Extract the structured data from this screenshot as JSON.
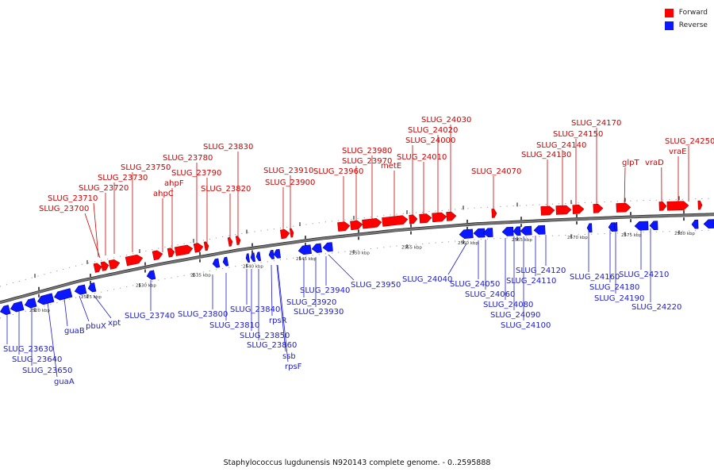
{
  "colors": {
    "forward": "#ff0000",
    "reverse": "#0a17ff",
    "forward_label": "#cc0000",
    "reverse_label": "#1a1acc",
    "backbone": "#777777"
  },
  "legend": [
    {
      "label": "Forward",
      "color": "#ff0000"
    },
    {
      "label": "Reverse",
      "color": "#0a17ff"
    }
  ],
  "caption": "Staphylococcus lugdunensis N920143 complete genome. - 0..2595888",
  "ticks": [
    "2520 kbp",
    "2525 kbp",
    "2530 kbp",
    "2535 kbp",
    "2540 kbp",
    "2545 kbp",
    "2550 kbp",
    "2555 kbp",
    "2560 kbp",
    "2565 kbp",
    "2570 kbp",
    "2575 kbp",
    "2580 kbp"
  ],
  "forward_labels": [
    "SLUG_23700",
    "SLUG_23710",
    "SLUG_23720",
    "SLUG_23730",
    "SLUG_23750",
    "ahpC",
    "ahpF",
    "SLUG_23780",
    "SLUG_23790",
    "SLUG_23820",
    "SLUG_23830",
    "SLUG_23900",
    "SLUG_23910",
    "SLUG_23960",
    "SLUG_23970",
    "SLUG_23980",
    "metE",
    "SLUG_24000",
    "SLUG_24010",
    "SLUG_24020",
    "SLUG_24030",
    "SLUG_24070",
    "SLUG_24130",
    "SLUG_24140",
    "SLUG_24150",
    "SLUG_24170",
    "glpT",
    "vraD",
    "vraE",
    "SLUG_24250"
  ],
  "reverse_labels": [
    "SLUG_23630",
    "SLUG_23640",
    "SLUG_23650",
    "guaA",
    "guaB",
    "pbuX",
    "xpt",
    "SLUG_23740",
    "SLUG_23800",
    "SLUG_23810",
    "SLUG_23840",
    "SLUG_23850",
    "SLUG_23860",
    "rpsR",
    "ssb",
    "rpsF",
    "SLUG_23920",
    "SLUG_23930",
    "SLUG_23940",
    "SLUG_23950",
    "SLUG_24040",
    "SLUG_24050",
    "SLUG_24060",
    "SLUG_24080",
    "SLUG_24090",
    "SLUG_24100",
    "SLUG_24110",
    "SLUG_24120",
    "SLUG_24160",
    "SLUG_24180",
    "SLUG_24190",
    "SLUG_24210",
    "SLUG_24220"
  ]
}
